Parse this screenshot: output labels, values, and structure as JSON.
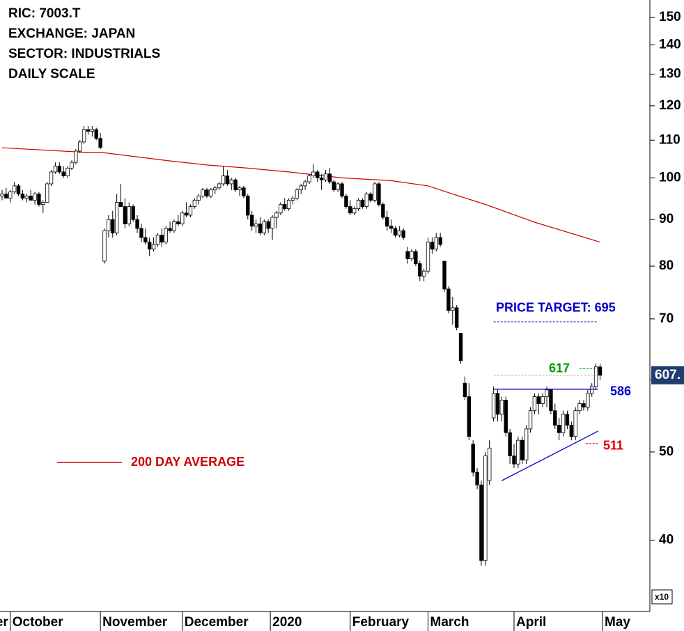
{
  "chart_data": {
    "type": "candlestick",
    "info": [
      "RIC: 7003.T",
      "EXCHANGE: JAPAN",
      "SECTOR: INDUSTRIALS",
      "DAILY SCALE"
    ],
    "log_scale": true,
    "ylim": [
      33.4,
      156.8
    ],
    "yticks": [
      40,
      50,
      60,
      70,
      80,
      90,
      100,
      110,
      120,
      130,
      140,
      150
    ],
    "y_multiplier": "x10",
    "last_price": {
      "value": 60.7,
      "label": "607."
    },
    "x_labels": [
      "September",
      "October",
      "November",
      "December",
      "2020",
      "February",
      "March",
      "April",
      "May"
    ],
    "xticks": [
      2,
      24,
      44,
      65.5,
      85,
      104,
      125,
      146.6
    ],
    "candles": [
      [
        95.5,
        97,
        94.5,
        96
      ],
      [
        96,
        97.5,
        95,
        95
      ],
      [
        95,
        97,
        94,
        96.5
      ],
      [
        96.5,
        99,
        96,
        98
      ],
      [
        98,
        98.5,
        95.5,
        96
      ],
      [
        96,
        97,
        94.5,
        95
      ],
      [
        95,
        96,
        94,
        95.5
      ],
      [
        95.5,
        97,
        94.5,
        94.5
      ],
      [
        94.5,
        96.5,
        93.5,
        96
      ],
      [
        96,
        96.5,
        93,
        93.5
      ],
      [
        93.5,
        94.5,
        91.5,
        94
      ],
      [
        94,
        99,
        94,
        98.5
      ],
      [
        98.5,
        102,
        98,
        101.5
      ],
      [
        101.5,
        104,
        101,
        103
      ],
      [
        103,
        104,
        101,
        101.5
      ],
      [
        101.5,
        103,
        100,
        100.5
      ],
      [
        100.5,
        103,
        100,
        102.5
      ],
      [
        102.5,
        104.5,
        102,
        104
      ],
      [
        104,
        107.5,
        103.5,
        107
      ],
      [
        107,
        110,
        106.5,
        109.5
      ],
      [
        109.5,
        114,
        109,
        113
      ],
      [
        113,
        114,
        111.5,
        112.5
      ],
      [
        112.5,
        114,
        111,
        113
      ],
      [
        113,
        113.5,
        110,
        110.5
      ],
      [
        110.5,
        112,
        107.5,
        108
      ],
      [
        81,
        88,
        80.5,
        87.5
      ],
      [
        87.5,
        91,
        86,
        90
      ],
      [
        90,
        92,
        86,
        87
      ],
      [
        87,
        96,
        86.5,
        94
      ],
      [
        94,
        98.5,
        93,
        93
      ],
      [
        93,
        95,
        88,
        89
      ],
      [
        89,
        94,
        88.5,
        93
      ],
      [
        93,
        93.5,
        89.5,
        90
      ],
      [
        90,
        91,
        87,
        88
      ],
      [
        88,
        89,
        85,
        86
      ],
      [
        86,
        88,
        84.5,
        85
      ],
      [
        85,
        86,
        82,
        83.5
      ],
      [
        83.5,
        86,
        83,
        84.5
      ],
      [
        84.5,
        87,
        84,
        86.5
      ],
      [
        86.5,
        88,
        84,
        85
      ],
      [
        85,
        88.5,
        84.5,
        88
      ],
      [
        88,
        89.5,
        87,
        87.5
      ],
      [
        87.5,
        90,
        87,
        89.5
      ],
      [
        89.5,
        91,
        88.5,
        89
      ],
      [
        89,
        92,
        88.5,
        91.5
      ],
      [
        91.5,
        94,
        90.5,
        91
      ],
      [
        91,
        93.5,
        90.5,
        93
      ],
      [
        93,
        95,
        92.5,
        94.5
      ],
      [
        94.5,
        96,
        93.5,
        95.5
      ],
      [
        95.5,
        97.5,
        95,
        97
      ],
      [
        97,
        97.5,
        95,
        95.5
      ],
      [
        95.5,
        97.5,
        95,
        97
      ],
      [
        97,
        98,
        96,
        97.5
      ],
      [
        97.5,
        99,
        97,
        98.5
      ],
      [
        98.5,
        103,
        98,
        100.5
      ],
      [
        100.5,
        102,
        98,
        98.5
      ],
      [
        98.5,
        100,
        97,
        99.5
      ],
      [
        99.5,
        100,
        96.5,
        97
      ],
      [
        97,
        98,
        95.5,
        97.5
      ],
      [
        97.5,
        98,
        95,
        95.5
      ],
      [
        95.5,
        96,
        90,
        91
      ],
      [
        91,
        92,
        87.5,
        88.5
      ],
      [
        88.5,
        90,
        87,
        89
      ],
      [
        89,
        90.5,
        86.5,
        87
      ],
      [
        87,
        90,
        86.5,
        89.5
      ],
      [
        89.5,
        90,
        87,
        88
      ],
      [
        88,
        91,
        85.5,
        90.5
      ],
      [
        90.5,
        92,
        88,
        91.5
      ],
      [
        91.5,
        94,
        91,
        93.5
      ],
      [
        93.5,
        95,
        92,
        92.5
      ],
      [
        92.5,
        95,
        92,
        94.5
      ],
      [
        94.5,
        95.5,
        93.5,
        95
      ],
      [
        95,
        97.5,
        94.5,
        97
      ],
      [
        97,
        98.5,
        96,
        98
      ],
      [
        98,
        99.5,
        97,
        99
      ],
      [
        99,
        101,
        98.5,
        100.5
      ],
      [
        100.5,
        103.5,
        100,
        101.5
      ],
      [
        101.5,
        102,
        99,
        100
      ],
      [
        100,
        101,
        97,
        99.5
      ],
      [
        99.5,
        102,
        99,
        101
      ],
      [
        101,
        102.5,
        98.5,
        99
      ],
      [
        99,
        99.5,
        96.5,
        97
      ],
      [
        97,
        99,
        96.5,
        98.5
      ],
      [
        98.5,
        99,
        95,
        95.5
      ],
      [
        95.5,
        96,
        92.5,
        93
      ],
      [
        93,
        94.5,
        91,
        91.5
      ],
      [
        91.5,
        93,
        91,
        92.5
      ],
      [
        92.5,
        95,
        92,
        94.5
      ],
      [
        94.5,
        95,
        92.5,
        93
      ],
      [
        93,
        96.5,
        92.5,
        96
      ],
      [
        96,
        96.5,
        94,
        94.5
      ],
      [
        94.5,
        99,
        94,
        98.5
      ],
      [
        98.5,
        99,
        93,
        93.5
      ],
      [
        93.5,
        94,
        90,
        90.5
      ],
      [
        90.5,
        92,
        87.5,
        88.5
      ],
      [
        88.5,
        90,
        87,
        88
      ],
      [
        88,
        88.5,
        86,
        86.5
      ],
      [
        86.5,
        88.5,
        86,
        87.5
      ],
      [
        87.5,
        88,
        85.5,
        86
      ],
      [
        83,
        84,
        80.5,
        81.5
      ],
      [
        81.5,
        83.5,
        81,
        83
      ],
      [
        83,
        83.5,
        80,
        80.5
      ],
      [
        80.5,
        81,
        77,
        78
      ],
      [
        78,
        79.5,
        77,
        79
      ],
      [
        79,
        86,
        78.5,
        85
      ],
      [
        85,
        86,
        82.5,
        83.5
      ],
      [
        83.5,
        87,
        83,
        86
      ],
      [
        86,
        87,
        84,
        84.5
      ],
      [
        81,
        81,
        75,
        75.5
      ],
      [
        75.5,
        76,
        71,
        71.5
      ],
      [
        71.5,
        74,
        69,
        72
      ],
      [
        72,
        72.5,
        68,
        68.5
      ],
      [
        67.5,
        67.5,
        62.5,
        63
      ],
      [
        59.5,
        60.5,
        57,
        57.5
      ],
      [
        57.5,
        59.5,
        51.5,
        52
      ],
      [
        51,
        51.5,
        47,
        47.5
      ],
      [
        47.5,
        48,
        45.5,
        46
      ],
      [
        46,
        46.5,
        37.5,
        38
      ],
      [
        38,
        50,
        37.5,
        49.5
      ],
      [
        46.5,
        51.5,
        46,
        50.5
      ],
      [
        54.5,
        59,
        54,
        58
      ],
      [
        58,
        58.5,
        54,
        55
      ],
      [
        55,
        57.5,
        54,
        57
      ],
      [
        57,
        57.5,
        52,
        52.5
      ],
      [
        52.5,
        53,
        48.5,
        49.5
      ],
      [
        49.5,
        51,
        48,
        48.5
      ],
      [
        48.5,
        52,
        48,
        51.5
      ],
      [
        51.5,
        52,
        48.5,
        49
      ],
      [
        49,
        53.5,
        48.5,
        53
      ],
      [
        53,
        56,
        52.5,
        55.5
      ],
      [
        55.5,
        58,
        55,
        57.5
      ],
      [
        57.5,
        58,
        55,
        56.5
      ],
      [
        56.5,
        58,
        56,
        57.5
      ],
      [
        57.5,
        59,
        56,
        58.5
      ],
      [
        58.5,
        58.5,
        55,
        55.5
      ],
      [
        55.5,
        56.5,
        53,
        53.5
      ],
      [
        53.5,
        54.5,
        51.5,
        52.5
      ],
      [
        52.5,
        55.5,
        52,
        55
      ],
      [
        55,
        55.5,
        53,
        53.5
      ],
      [
        53.5,
        54,
        51.5,
        52
      ],
      [
        52,
        56,
        51.5,
        55.5
      ],
      [
        55.5,
        57,
        55,
        56.5
      ],
      [
        56.5,
        57,
        55.5,
        56
      ],
      [
        56,
        58.5,
        55.5,
        58
      ],
      [
        58,
        59.5,
        57.5,
        59
      ],
      [
        59,
        62.5,
        58.5,
        62
      ],
      [
        62,
        62.5,
        60,
        60.7
      ]
    ],
    "moving_average": {
      "name": "200 DAY AVERAGE",
      "color": "#cc0000",
      "x": [
        0,
        20,
        24,
        40,
        50,
        60,
        70,
        83,
        95,
        104,
        110,
        118,
        130,
        146
      ],
      "values": [
        107.9,
        106.7,
        106.7,
        104.5,
        103.3,
        102.5,
        101.5,
        100,
        99.3,
        98,
        96,
        93.5,
        89.4,
        85
      ]
    },
    "levels": [
      {
        "label": "PRICE TARGET: 695",
        "value": 69.5,
        "x": [
          120,
          145.5
        ],
        "color": "#0000cc",
        "style": "dotted"
      },
      {
        "label": "617",
        "value": 61.7,
        "x": [
          141,
          145.5
        ],
        "color": "#009900",
        "style": "dotted"
      },
      {
        "label": "586",
        "value": 58.6,
        "x": [
          120,
          145.5
        ],
        "color": "#0000cc",
        "style": "solid"
      },
      {
        "label": "511",
        "value": 51.1,
        "x": [
          142.5,
          145.5
        ],
        "color": "#dd0000",
        "style": "dotted"
      }
    ],
    "trendline": {
      "x": [
        122,
        145.5
      ],
      "values": [
        46.5,
        52.7
      ],
      "color": "#0000cc"
    }
  }
}
